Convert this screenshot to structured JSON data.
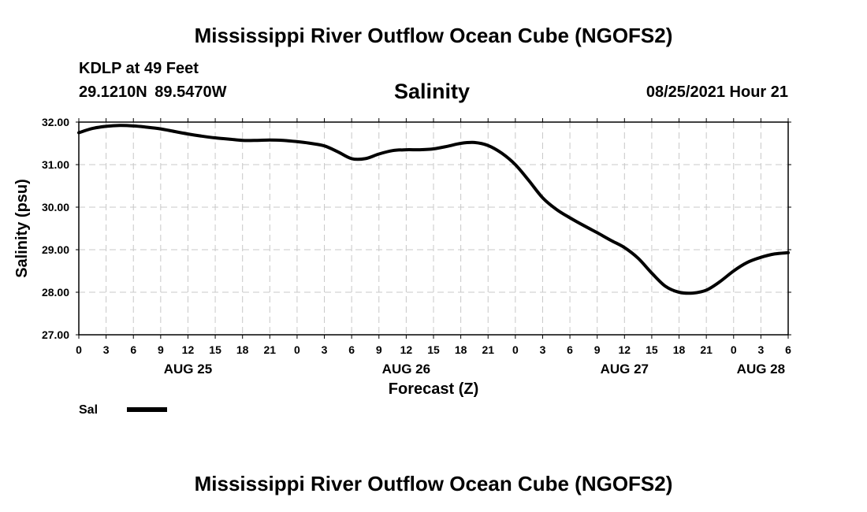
{
  "header": {
    "title": "Mississippi River Outflow Ocean Cube (NGOFS2)",
    "station": "KDLP at 49 Feet",
    "coords": "29.1210N  89.5470W",
    "variable": "Salinity",
    "datetime": "08/25/2021 Hour 21"
  },
  "footer": {
    "title": "Mississippi River Outflow Ocean Cube (NGOFS2)"
  },
  "colors": {
    "line": "#000000",
    "grid": "#c8c8c8",
    "background": "#ffffff"
  },
  "chart_data": {
    "type": "line",
    "title": "Salinity",
    "xlabel": "Forecast (Z)",
    "ylabel": "Salinity (psu)",
    "xlim": [
      0,
      78
    ],
    "ylim": [
      27.0,
      32.0
    ],
    "grid": true,
    "yticks": [
      "27.00",
      "28.00",
      "29.00",
      "30.00",
      "31.00",
      "32.00"
    ],
    "xtick_hours": [
      0,
      3,
      6,
      9,
      12,
      15,
      18,
      21,
      24,
      27,
      30,
      33,
      36,
      39,
      42,
      45,
      48,
      51,
      54,
      57,
      60,
      63,
      66,
      69,
      72,
      75,
      78
    ],
    "xtick_labels": [
      "0",
      "3",
      "6",
      "9",
      "12",
      "15",
      "18",
      "21",
      "0",
      "3",
      "6",
      "9",
      "12",
      "15",
      "18",
      "21",
      "0",
      "3",
      "6",
      "9",
      "12",
      "15",
      "18",
      "21",
      "0",
      "3",
      "6"
    ],
    "date_labels": [
      {
        "hour": 12,
        "label": "AUG 25"
      },
      {
        "hour": 36,
        "label": "AUG 26"
      },
      {
        "hour": 60,
        "label": "AUG 27"
      },
      {
        "hour": 75,
        "label": "AUG 28"
      }
    ],
    "legend": {
      "position": "bottom-left",
      "label": "Sal"
    },
    "series": [
      {
        "name": "Sal",
        "x": [
          0,
          1.5,
          3,
          4.5,
          6,
          7.5,
          9,
          10.5,
          12,
          13.5,
          15,
          16.5,
          18,
          19.5,
          21,
          22.5,
          24,
          25.5,
          27,
          28.5,
          30,
          31.5,
          33,
          34.5,
          36,
          37.5,
          39,
          40.5,
          42,
          43.5,
          45,
          46.5,
          48,
          49.5,
          51,
          52.5,
          54,
          55.5,
          57,
          58.5,
          60,
          61.5,
          63,
          64.5,
          66,
          67.5,
          69,
          70.5,
          72,
          73.5,
          75,
          76.5,
          78
        ],
        "values": [
          31.75,
          31.85,
          31.9,
          31.92,
          31.91,
          31.88,
          31.84,
          31.78,
          31.72,
          31.67,
          31.63,
          31.6,
          31.57,
          31.57,
          31.58,
          31.57,
          31.54,
          31.5,
          31.44,
          31.3,
          31.14,
          31.14,
          31.25,
          31.33,
          31.35,
          31.35,
          31.37,
          31.43,
          31.5,
          31.52,
          31.45,
          31.27,
          31.0,
          30.62,
          30.22,
          29.95,
          29.75,
          29.57,
          29.4,
          29.22,
          29.05,
          28.8,
          28.45,
          28.14,
          28.0,
          27.98,
          28.05,
          28.25,
          28.5,
          28.7,
          28.82,
          28.9,
          28.93
        ]
      }
    ]
  }
}
